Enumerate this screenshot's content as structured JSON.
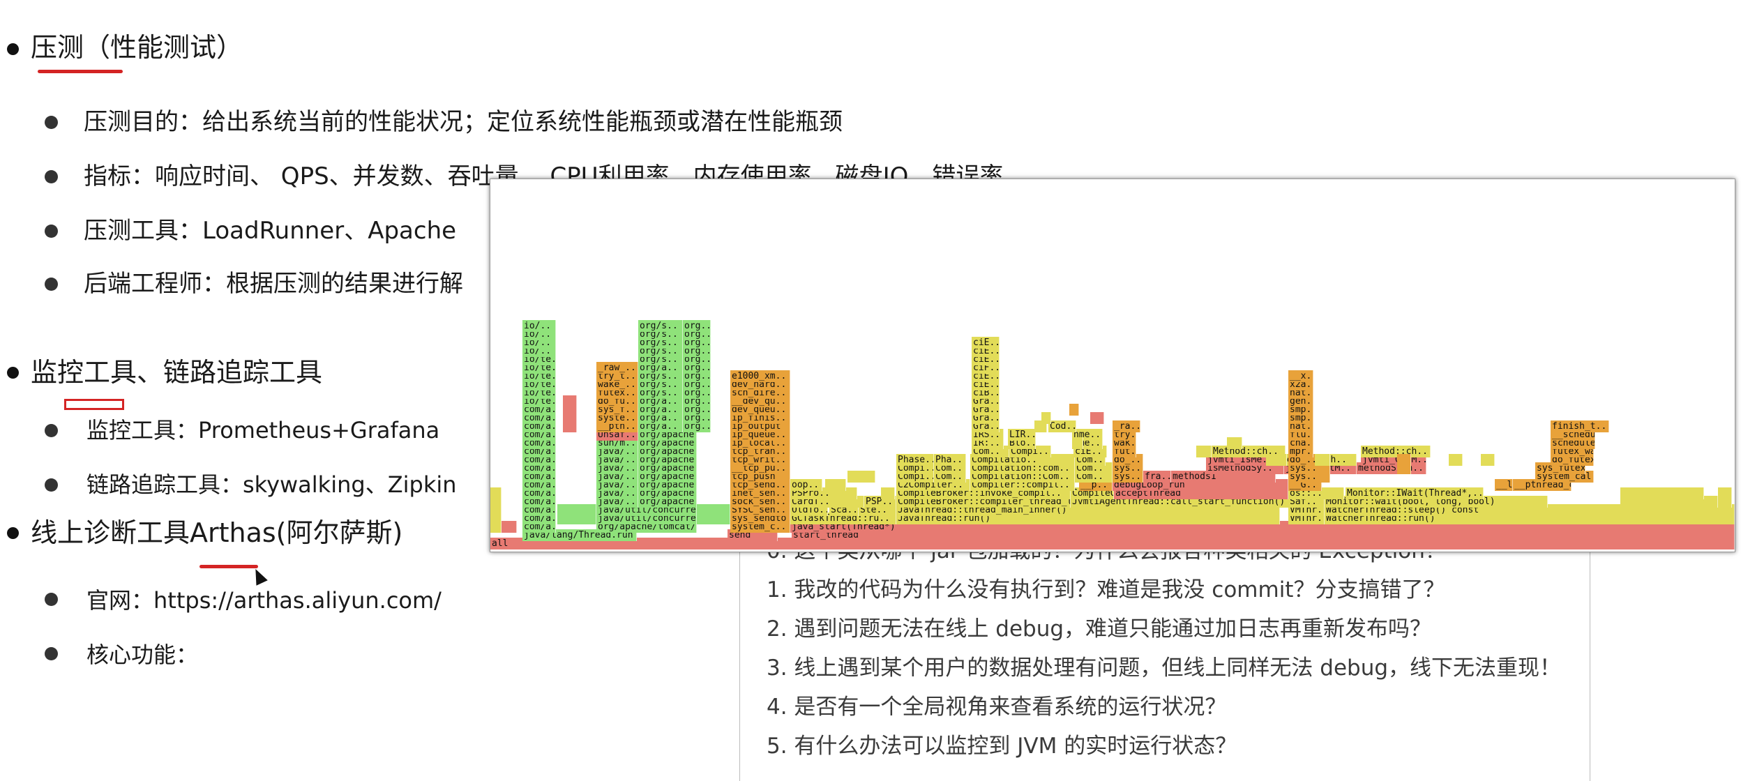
{
  "slide": {
    "sec1": {
      "title": "压测（性能测试）",
      "items": [
        "压测目的：给出系统当前的性能状况；定位系统性能瓶颈或潜在性能瓶颈",
        "指标：响应时间、 QPS、并发数、吞吐量、 CPU利用率、内存使用率、磁盘IO、错误率",
        "压测工具：LoadRunner、Apache",
        "后端工程师：根据压测的结果进行解"
      ]
    },
    "sec2": {
      "title": "监控工具、链路追踪工具",
      "items": [
        "监控工具：Prometheus+Grafana",
        "链路追踪工具：skywalking、Zipkin"
      ]
    },
    "sec3": {
      "title": "线上诊断工具Arthas(阿尔萨斯)",
      "items": [
        "官网：https://arthas.aliyun.com/",
        "核心功能："
      ]
    },
    "questions": [
      "0. 这个类从哪个 jar 包加载的？为什么会报各种类相关的 Exception？",
      "1. 我改的代码为什么没有执行到？难道是我没 commit？分支搞错了？",
      "2. 遇到问题无法在线上 debug，难道只能通过加日志再重新发布吗？",
      "3. 线上遇到某个用户的数据处理有问题，但线上同样无法 debug，线下无法重现！",
      "4. 是否有一个全局视角来查看系统的运行状况？",
      "5. 有什么办法可以监控到 JVM 的实时运行状态？"
    ]
  },
  "colors": {
    "green": "#8fe27a",
    "yellow": "#e2dc58",
    "orange": "#e8a23a",
    "red": "#e77a72",
    "accent": "#d42424"
  },
  "flame": {
    "root": "all",
    "frames": [
      [
        "java/lang/Thread.run",
        "g",
        1
      ],
      [
        "send",
        "r",
        1
      ],
      [
        "start_thread",
        "r",
        1
      ],
      [
        "com/a..",
        "g",
        2
      ],
      [
        "org/apache/tomcat/..",
        "g",
        2
      ],
      [
        "system_c..",
        "o",
        2
      ],
      [
        "java_start(Thread*)",
        "r",
        2
      ],
      [
        "com/a..",
        "g",
        3
      ],
      [
        "java/util/concurre..",
        "g",
        3
      ],
      [
        "sys_sendto",
        "o",
        3
      ],
      [
        "GCTaskThread::ru..",
        "y",
        3
      ],
      [
        "JavaThread::run()",
        "y",
        3
      ],
      [
        "VMThr..",
        "y",
        3
      ],
      [
        "WatcherThread::run()",
        "y",
        3
      ],
      [
        "com/a..",
        "g",
        4
      ],
      [
        "java/util/concurre..",
        "g",
        4
      ],
      [
        "SYSC_sen..",
        "o",
        4
      ],
      [
        "OldTo..",
        "y",
        4
      ],
      [
        "Sca..",
        "y",
        4
      ],
      [
        "Ste..",
        "y",
        4
      ],
      [
        "JavaThread::thread_main_inner()",
        "y",
        4
      ],
      [
        "VMThr..",
        "y",
        4
      ],
      [
        "WatcherThread::sleep() const",
        "y",
        4
      ],
      [
        "com/a..",
        "g",
        5
      ],
      [
        "java/..",
        "g",
        5
      ],
      [
        "org/apache..",
        "g",
        5
      ],
      [
        "sock_sen..",
        "o",
        5
      ],
      [
        "CardT..",
        "y",
        5
      ],
      [
        "PSP..",
        "y",
        5
      ],
      [
        "CompileBroker::compiler_thread_loop()",
        "y",
        5
      ],
      [
        "JvmtiAgentThread::call_start_function()",
        "y",
        5
      ],
      [
        "Saf..",
        "y",
        5
      ],
      [
        "Monitor::wait(bool, long, bool)",
        "y",
        5
      ],
      [
        "com/a..",
        "g",
        6
      ],
      [
        "java/..",
        "g",
        6
      ],
      [
        "org/apache..",
        "g",
        6
      ],
      [
        "inet_sen..",
        "o",
        6
      ],
      [
        "PSPro..",
        "y",
        6
      ],
      [
        "CompileBroker::invoke_compil..",
        "y",
        6
      ],
      [
        "CompileQ..",
        "y",
        6
      ],
      [
        "acceptThread",
        "r",
        6
      ],
      [
        "os::..",
        "y",
        6
      ],
      [
        "Monitor::IWait(Thread*,..",
        "y",
        6
      ],
      [
        "com/a..",
        "g",
        7
      ],
      [
        "java/..",
        "g",
        7
      ],
      [
        "org/apache..",
        "g",
        7
      ],
      [
        "tcp_send..",
        "o",
        7
      ],
      [
        "oop..",
        "y",
        7
      ],
      [
        "C2Compiler..",
        "y",
        7
      ],
      [
        "Compiler::compil..",
        "y",
        7
      ],
      [
        "__p..",
        "o",
        7
      ],
      [
        "debugLoop_run",
        "r",
        7
      ],
      [
        "__G..",
        "o",
        7
      ],
      [
        "__l..",
        "o",
        7
      ],
      [
        "__pthread_cond_t..",
        "o",
        7
      ],
      [
        "com/a..",
        "g",
        8
      ],
      [
        "java/..",
        "g",
        8
      ],
      [
        "org/apache..",
        "g",
        8
      ],
      [
        "tcp_push",
        "o",
        8
      ],
      [
        "Compi..",
        "y",
        8
      ],
      [
        "Com..",
        "y",
        8
      ],
      [
        "Compilation::Com..",
        "y",
        8
      ],
      [
        "Com..",
        "y",
        8
      ],
      [
        "sys..",
        "o",
        8
      ],
      [
        "fra..",
        "r",
        8
      ],
      [
        "methods1",
        "r",
        8
      ],
      [
        "sys..",
        "o",
        8
      ],
      [
        "system_cal..",
        "o",
        8
      ],
      [
        "com/a..",
        "g",
        9
      ],
      [
        "java/..",
        "g",
        9
      ],
      [
        "org/apache..",
        "g",
        9
      ],
      [
        "__tcp_pu..",
        "o",
        9
      ],
      [
        "Compi..",
        "y",
        9
      ],
      [
        "Com..",
        "y",
        9
      ],
      [
        "Compilation::com..",
        "y",
        9
      ],
      [
        "Com..",
        "y",
        9
      ],
      [
        "sys..",
        "o",
        9
      ],
      [
        "isMethodSy..",
        "r",
        9
      ],
      [
        "jvmti_GetM..",
        "r",
        9
      ],
      [
        "methodSign..",
        "r",
        9
      ],
      [
        "sys..",
        "o",
        9
      ],
      [
        "sys_futex",
        "o",
        9
      ],
      [
        "com/a..",
        "g",
        10
      ],
      [
        "java/..",
        "g",
        10
      ],
      [
        "org/apache..",
        "g",
        10
      ],
      [
        "tcp_writ..",
        "o",
        10
      ],
      [
        "Phase..",
        "y",
        10
      ],
      [
        "Pha..",
        "y",
        10
      ],
      [
        "Compilatio..",
        "y",
        10
      ],
      [
        "Com..",
        "y",
        10
      ],
      [
        "do_..",
        "o",
        10
      ],
      [
        "jvmti_IsMe..",
        "r",
        10
      ],
      [
        "Method::ch..",
        "y",
        10
      ],
      [
        "jvmti_GetM..",
        "r",
        10
      ],
      [
        "do_..",
        "o",
        10
      ],
      [
        "do_futex",
        "o",
        10
      ],
      [
        "com/a..",
        "g",
        11
      ],
      [
        "java/..",
        "g",
        11
      ],
      [
        "org/apache..",
        "g",
        11
      ],
      [
        "tcp_tran..",
        "o",
        11
      ],
      [
        "Com..",
        "y",
        11
      ],
      [
        "Compi..",
        "y",
        11
      ],
      [
        "ciE..",
        "y",
        11
      ],
      [
        "fut..",
        "o",
        11
      ],
      [
        "Method::ch..",
        "y",
        11
      ],
      [
        "Method::ch..",
        "y",
        11
      ],
      [
        "mpr..",
        "o",
        11
      ],
      [
        "futex_wait",
        "o",
        11
      ],
      [
        "com/a..",
        "g",
        12
      ],
      [
        "sun/m..",
        "g",
        12
      ],
      [
        "org/apache..",
        "g",
        12
      ],
      [
        "ip_local..",
        "o",
        12
      ],
      [
        "IR:..",
        "y",
        12
      ],
      [
        "Blo..",
        "y",
        12
      ],
      [
        "nme..",
        "y",
        12
      ],
      [
        "wak..",
        "o",
        12
      ],
      [
        "cha..",
        "o",
        12
      ],
      [
        "schedule",
        "o",
        12
      ],
      [
        "com/a..",
        "g",
        13
      ],
      [
        "Unsaf..",
        "r",
        13
      ],
      [
        "org/apache..",
        "g",
        13
      ],
      [
        "ip_queue..",
        "o",
        13
      ],
      [
        "IRS..",
        "y",
        13
      ],
      [
        "LIR..",
        "y",
        13
      ],
      [
        "nme..",
        "y",
        13
      ],
      [
        "try..",
        "o",
        13
      ],
      [
        "flu..",
        "o",
        13
      ],
      [
        "__schedule",
        "o",
        13
      ],
      [
        "com/a..",
        "g",
        14
      ],
      [
        "__pth..",
        "o",
        14
      ],
      [
        "org/a..",
        "g",
        14
      ],
      [
        "org..",
        "g",
        14
      ],
      [
        "ip_output",
        "o",
        14
      ],
      [
        "Gra..",
        "y",
        14
      ],
      [
        "Cod..",
        "y",
        14
      ],
      [
        "_ra..",
        "o",
        14
      ],
      [
        "nat..",
        "o",
        14
      ],
      [
        "finish_t..",
        "o",
        14
      ],
      [
        "com/a..",
        "g",
        15
      ],
      [
        "syste..",
        "o",
        15
      ],
      [
        "org/a..",
        "g",
        15
      ],
      [
        "org..",
        "g",
        15
      ],
      [
        "ip_finis..",
        "o",
        15
      ],
      [
        "Gra..",
        "y",
        15
      ],
      [
        "smp..",
        "o",
        15
      ],
      [
        "com/a..",
        "g",
        16
      ],
      [
        "sys_f..",
        "o",
        16
      ],
      [
        "org/a..",
        "g",
        16
      ],
      [
        "org..",
        "g",
        16
      ],
      [
        "dev_queu..",
        "o",
        16
      ],
      [
        "Gra..",
        "y",
        16
      ],
      [
        "smp..",
        "o",
        16
      ],
      [
        "io/te..",
        "g",
        17
      ],
      [
        "do_fu..",
        "o",
        17
      ],
      [
        "org/a..",
        "g",
        17
      ],
      [
        "org..",
        "g",
        17
      ],
      [
        "__dev_qu..",
        "o",
        17
      ],
      [
        "Gra..",
        "y",
        17
      ],
      [
        "gen..",
        "o",
        17
      ],
      [
        "io/te..",
        "g",
        18
      ],
      [
        "futex..",
        "o",
        18
      ],
      [
        "org/s..",
        "g",
        18
      ],
      [
        "org..",
        "g",
        18
      ],
      [
        "sch_dire..",
        "o",
        18
      ],
      [
        "ciB..",
        "y",
        18
      ],
      [
        "nat..",
        "o",
        18
      ],
      [
        "io/te..",
        "g",
        19
      ],
      [
        "wake_..",
        "o",
        19
      ],
      [
        "org/s..",
        "g",
        19
      ],
      [
        "org..",
        "g",
        19
      ],
      [
        "dev_hard..",
        "o",
        19
      ],
      [
        "ciE..",
        "y",
        19
      ],
      [
        "x2a..",
        "o",
        19
      ],
      [
        "io/te..",
        "g",
        20
      ],
      [
        "try_t..",
        "o",
        20
      ],
      [
        "org/s..",
        "g",
        20
      ],
      [
        "org..",
        "g",
        20
      ],
      [
        "e1000_xm..",
        "o",
        20
      ],
      [
        "ciE..",
        "y",
        20
      ],
      [
        "__x..",
        "o",
        20
      ],
      [
        "io/te..",
        "g",
        21
      ],
      [
        "_raw_..",
        "o",
        21
      ],
      [
        "org/a..",
        "g",
        21
      ],
      [
        "org..",
        "g",
        21
      ],
      [
        "ciF..",
        "y",
        21
      ],
      [
        "io/te..",
        "g",
        22
      ],
      [
        "org/s..",
        "g",
        22
      ],
      [
        "org..",
        "g",
        22
      ],
      [
        "ciE..",
        "y",
        22
      ],
      [
        "io/..",
        "g",
        23
      ],
      [
        "org/s..",
        "g",
        23
      ],
      [
        "org..",
        "g",
        23
      ],
      [
        "ciE..",
        "y",
        23
      ],
      [
        "io/..",
        "g",
        24
      ],
      [
        "org/s..",
        "g",
        24
      ],
      [
        "org..",
        "g",
        24
      ],
      [
        "ciE..",
        "y",
        24
      ],
      [
        "io/..",
        "g",
        25
      ],
      [
        "org/s..",
        "g",
        25
      ],
      [
        "org..",
        "g",
        25
      ],
      [
        "io/..",
        "g",
        26
      ],
      [
        "org/s..",
        "g",
        26
      ],
      [
        "org..",
        "g",
        26
      ]
    ]
  }
}
